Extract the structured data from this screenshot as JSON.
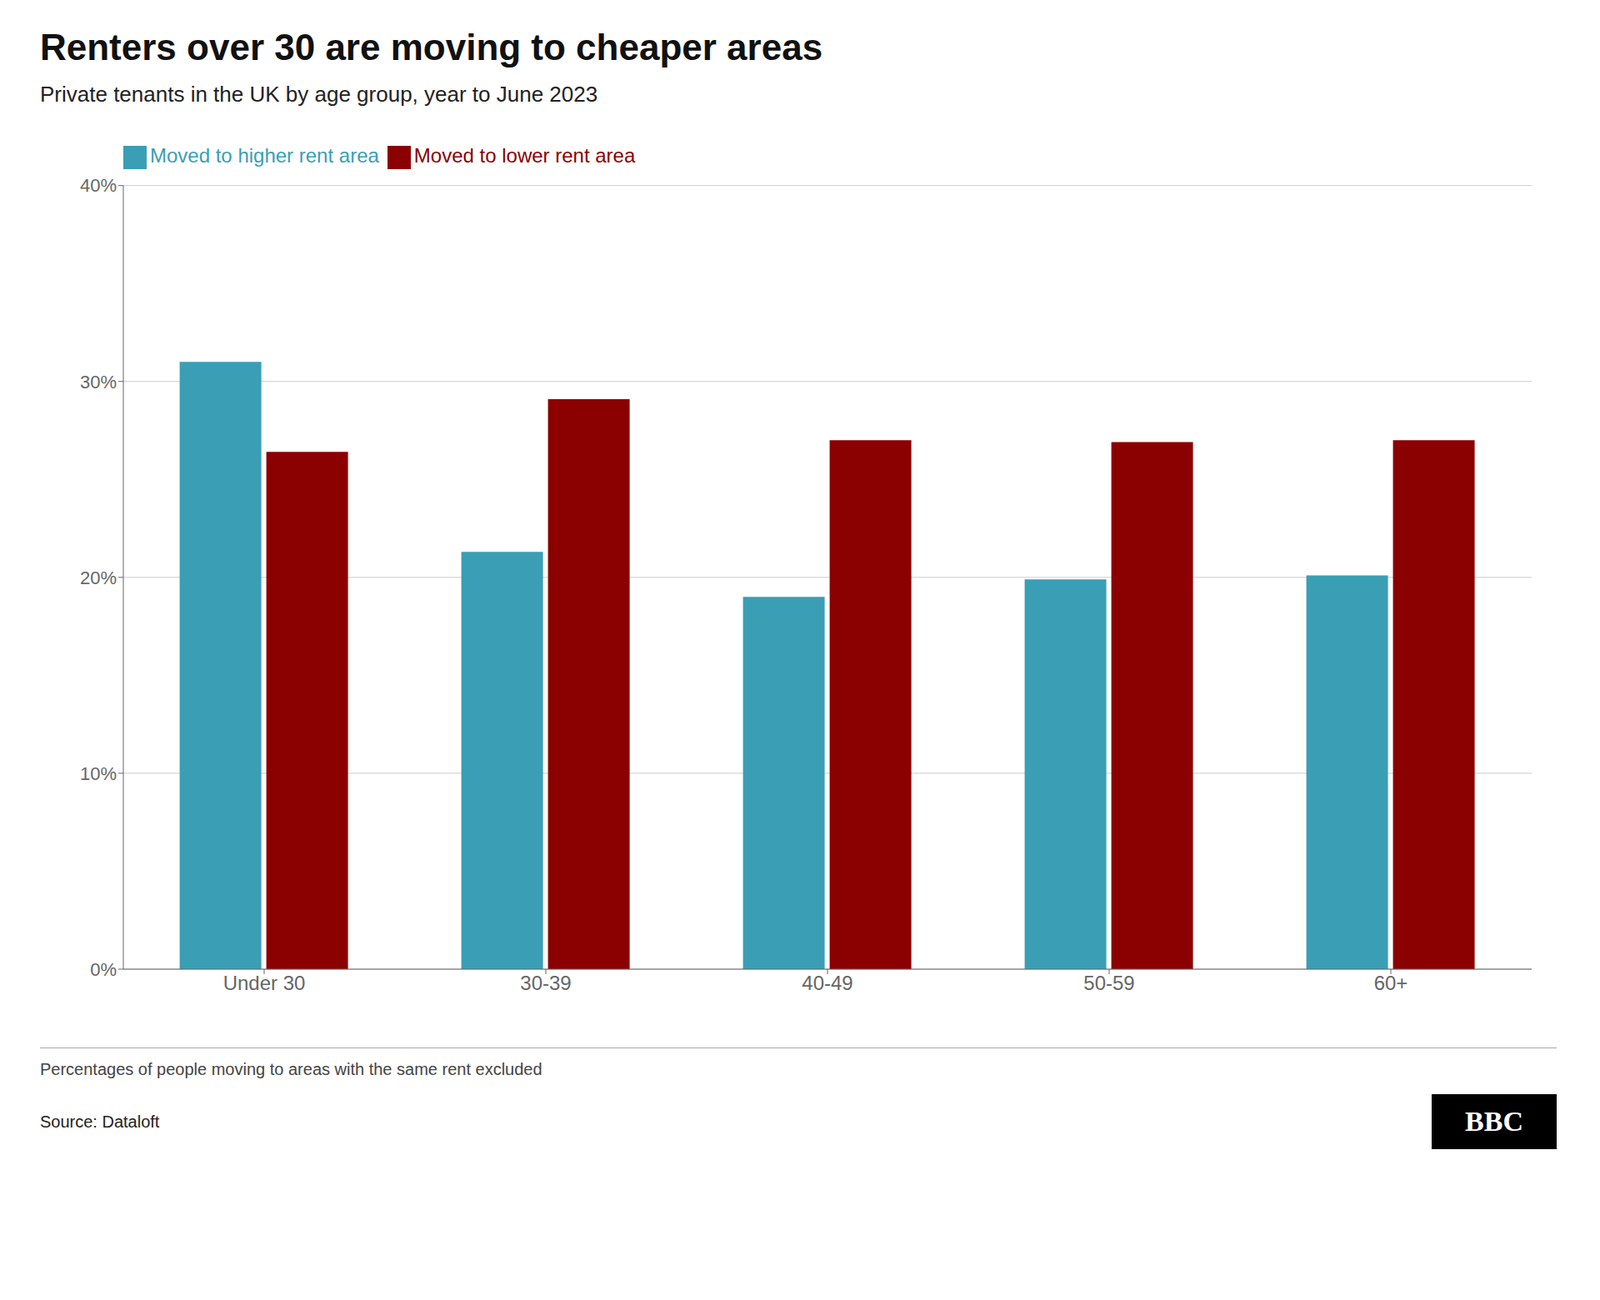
{
  "chart_data": {
    "type": "bar",
    "title": "Renters over 30 are moving to cheaper areas",
    "subtitle": "Private tenants in the UK by age group, year to June 2023",
    "categories": [
      "Under 30",
      "30-39",
      "40-49",
      "50-59",
      "60+"
    ],
    "series": [
      {
        "name": "Moved to higher rent area",
        "color": "#3a9eb5",
        "values": [
          31.0,
          21.3,
          19.0,
          19.9,
          20.1
        ]
      },
      {
        "name": "Moved to lower rent area",
        "color": "#8b0000",
        "values": [
          26.4,
          29.1,
          27.0,
          26.9,
          27.0
        ]
      }
    ],
    "ylim": [
      0,
      40
    ],
    "yticks": [
      {
        "value": 0,
        "label": "0%"
      },
      {
        "value": 10,
        "label": "10%"
      },
      {
        "value": 20,
        "label": "20%"
      },
      {
        "value": 30,
        "label": "30%"
      },
      {
        "value": 40,
        "label": "40%"
      }
    ],
    "grid": true,
    "legend": "top",
    "annotations": [
      "Percentages of people moving to areas with the same rent excluded",
      "Source: Dataloft",
      "BBC"
    ]
  }
}
